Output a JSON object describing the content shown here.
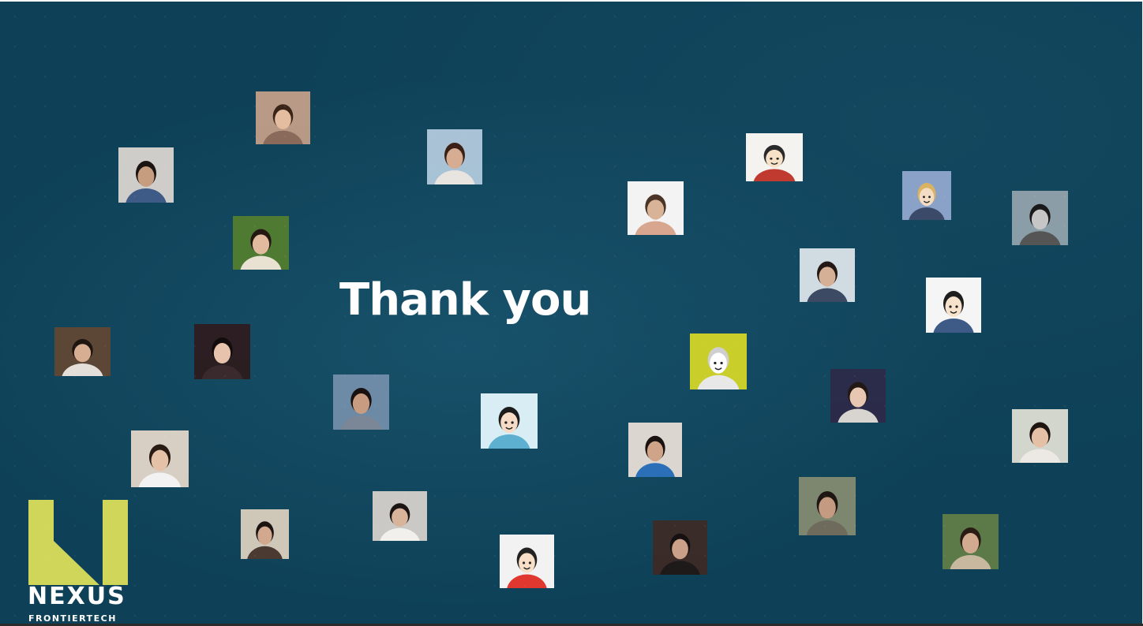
{
  "slide": {
    "title": "Thank you",
    "background_color": "#0e4157"
  },
  "logo": {
    "wordmark": "NEXUS",
    "subtitle": "FRONTIERTECH",
    "accent_color": "#cfd65a"
  },
  "participants": [
    {
      "id": "p1",
      "kind": "photo",
      "bg": "#b89a86",
      "skin": "#e4bca0",
      "hair": "#3a2418",
      "shirt": "#8a6a5a"
    },
    {
      "id": "p2",
      "kind": "photo",
      "bg": "#cfcdca",
      "skin": "#c79d80",
      "hair": "#1c1410",
      "shirt": "#3e5a86"
    },
    {
      "id": "p3",
      "kind": "photo",
      "bg": "#a9c2d6",
      "skin": "#d6ad92",
      "hair": "#3a2016",
      "shirt": "#e8e4e0"
    },
    {
      "id": "p4",
      "kind": "photo",
      "bg": "#4f7a32",
      "skin": "#e2bb9e",
      "hair": "#241812",
      "shirt": "#e9e1d2"
    },
    {
      "id": "p5",
      "kind": "photo",
      "bg": "#5c4636",
      "skin": "#d8ae92",
      "hair": "#1e1410",
      "shirt": "#e4dfd8"
    },
    {
      "id": "p6",
      "kind": "photo",
      "bg": "#2c1e22",
      "skin": "#e7c3ad",
      "hair": "#120c0c",
      "shirt": "#3a2a2e"
    },
    {
      "id": "p7",
      "kind": "photo",
      "bg": "#6d8aa6",
      "skin": "#c89c80",
      "hair": "#1a1210",
      "shirt": "#7b8796"
    },
    {
      "id": "p8",
      "kind": "cartoon",
      "bg": "#d8eef4",
      "skin": "#f6dcc6",
      "hair": "#1c1c1c",
      "shirt": "#5eb0d0"
    },
    {
      "id": "p9",
      "kind": "photo",
      "bg": "#d8cfc4",
      "skin": "#e5c1a8",
      "hair": "#2a1a14",
      "shirt": "#f2f2f2"
    },
    {
      "id": "p10",
      "kind": "photo",
      "bg": "#cfc8b8",
      "skin": "#d2a98e",
      "hair": "#1c1410",
      "shirt": "#4a3a32"
    },
    {
      "id": "p11",
      "kind": "photo",
      "bg": "#cac9c6",
      "skin": "#d8b49a",
      "hair": "#1a1412",
      "shirt": "#f1f0ec"
    },
    {
      "id": "p12",
      "kind": "cartoon",
      "bg": "#f2f2f2",
      "skin": "#f7dfc8",
      "hair": "#222222",
      "shirt": "#e0382e"
    },
    {
      "id": "p13",
      "kind": "photo",
      "bg": "#dcd6d0",
      "skin": "#cfa488",
      "hair": "#1a1210",
      "shirt": "#2b6fb8"
    },
    {
      "id": "p14",
      "kind": "photo",
      "bg": "#f3f3f3",
      "skin": "#d9b397",
      "hair": "#4a3428",
      "shirt": "#d8a68e"
    },
    {
      "id": "p15",
      "kind": "cartoon",
      "bg": "#f4f3ef",
      "skin": "#f7e2c8",
      "hair": "#2a2a2a",
      "shirt": "#c03a30"
    },
    {
      "id": "p16",
      "kind": "photo",
      "bg": "#3a2c28",
      "skin": "#caa088",
      "hair": "#161010",
      "shirt": "#1e1a1a"
    },
    {
      "id": "p17",
      "kind": "cartoon",
      "bg": "#c9ce2a",
      "skin": "#ffffff",
      "hair": "#cfcfcf",
      "shirt": "#e8e8e8"
    },
    {
      "id": "p18",
      "kind": "photo",
      "bg": "#2b2b4a",
      "skin": "#e8c7b2",
      "hair": "#221814",
      "shirt": "#d8d4d0"
    },
    {
      "id": "p19",
      "kind": "photo",
      "bg": "#7d8770",
      "skin": "#c49a80",
      "hair": "#1e1612",
      "shirt": "#6e6a5c"
    },
    {
      "id": "p20",
      "kind": "photo",
      "bg": "#d0dbe2",
      "skin": "#d6b096",
      "hair": "#241814",
      "shirt": "#3c4a64"
    },
    {
      "id": "p21",
      "kind": "cartoon",
      "bg": "#8aa2c8",
      "skin": "#f2dcc4",
      "hair": "#d9b262",
      "shirt": "#3c4a6a"
    },
    {
      "id": "p22",
      "kind": "cartoon",
      "bg": "#f5f5f5",
      "skin": "#f7e2cc",
      "hair": "#1e1e1e",
      "shirt": "#3e5a86"
    },
    {
      "id": "p23",
      "kind": "photo",
      "bg": "#8b9ea8",
      "skin": "#c6c6c6",
      "hair": "#1a1a1a",
      "shirt": "#555555"
    },
    {
      "id": "p24",
      "kind": "photo",
      "bg": "#d2d6cc",
      "skin": "#e4c0a6",
      "hair": "#1e1410",
      "shirt": "#ece8e4"
    },
    {
      "id": "p25",
      "kind": "photo",
      "bg": "#5c7a48",
      "skin": "#d2aa90",
      "hair": "#2a1c14",
      "shirt": "#c8b8a0"
    },
    {
      "id": "p26",
      "kind": "photo",
      "bg": "#a6b27c",
      "skin": "#d8b498",
      "hair": "#2a1c14",
      "shirt": "#d8d8d4"
    }
  ]
}
